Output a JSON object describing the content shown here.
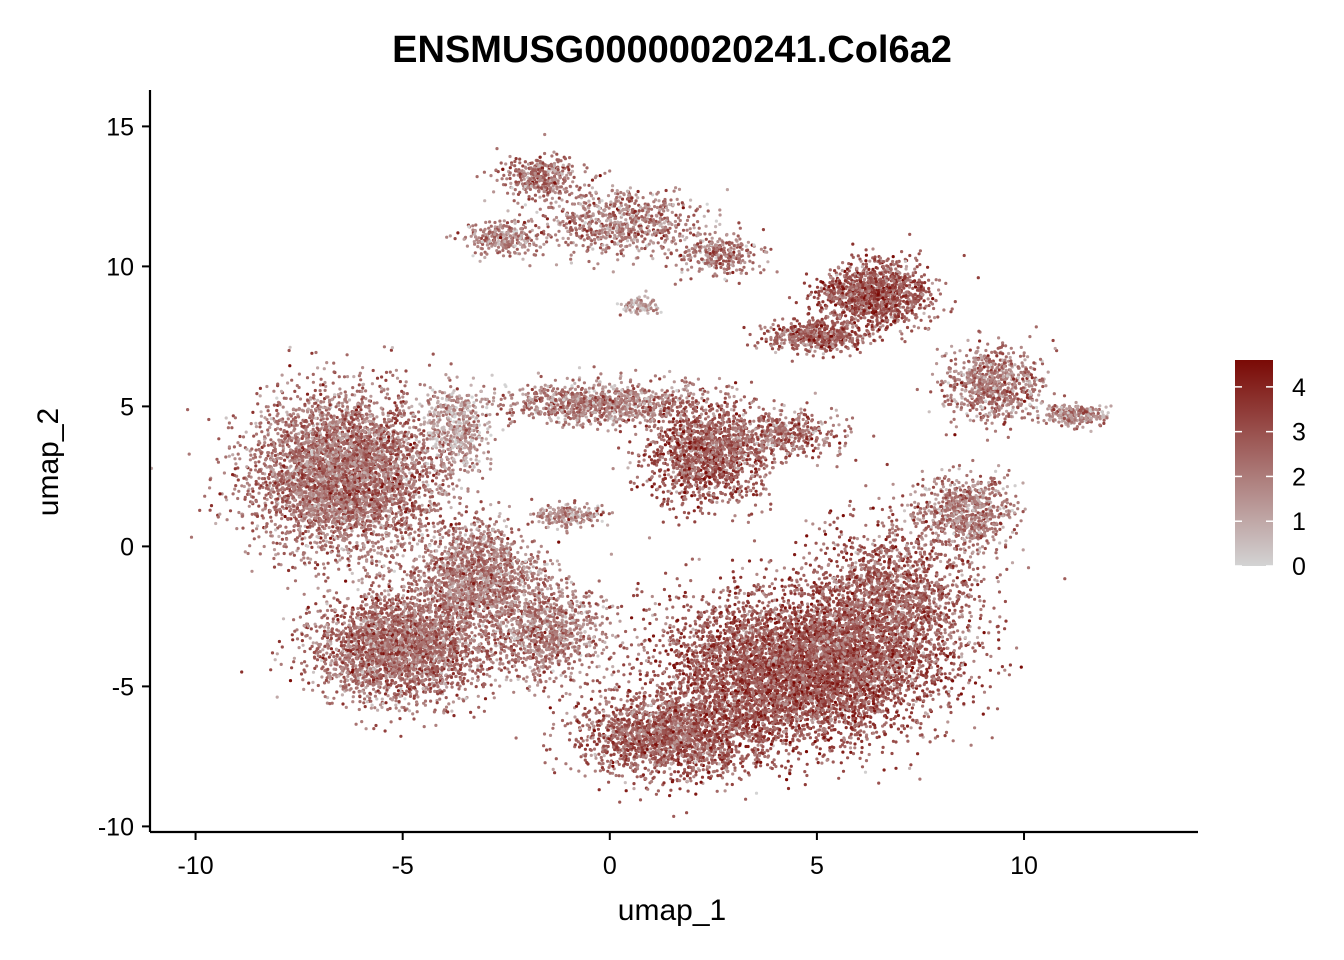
{
  "chart_data": {
    "type": "scatter",
    "title": "ENSMUSG00000020241.Col6a2",
    "xlabel": "umap_1",
    "ylabel": "umap_2",
    "xlim": [
      -11.1,
      14.2
    ],
    "ylim": [
      -10.2,
      16.3
    ],
    "x_ticks": [
      -10,
      -5,
      0,
      5,
      10
    ],
    "x_tick_labels": [
      "-10",
      "-5",
      "0",
      "5",
      "10"
    ],
    "y_ticks": [
      -10,
      -5,
      0,
      5,
      10,
      15
    ],
    "y_tick_labels": [
      "-10",
      "-5",
      "0",
      "5",
      "10",
      "15"
    ],
    "grid": false,
    "color_scale": {
      "low_color": "#d3d3d3",
      "high_color": "#7a0a05",
      "min": 0,
      "max": 4.6,
      "ticks": [
        0,
        1,
        2,
        3,
        4
      ],
      "tick_labels": [
        "0",
        "1",
        "2",
        "3",
        "4"
      ],
      "legend_placement": "right"
    },
    "clusters": [
      {
        "cx": -6.4,
        "cy": 2.6,
        "sx": 1.5,
        "sy": 1.9,
        "mean": 2.2,
        "weight": 18
      },
      {
        "cx": -5.0,
        "cy": -3.6,
        "sx": 1.4,
        "sy": 1.3,
        "mean": 2.4,
        "weight": 12
      },
      {
        "cx": -3.2,
        "cy": -1.0,
        "sx": 1.0,
        "sy": 1.3,
        "mean": 2.0,
        "weight": 6
      },
      {
        "cx": -1.5,
        "cy": -3.0,
        "sx": 1.0,
        "sy": 1.2,
        "mean": 2.0,
        "weight": 4
      },
      {
        "cx": 1.5,
        "cy": -6.8,
        "sx": 1.5,
        "sy": 1.0,
        "mean": 2.6,
        "weight": 8
      },
      {
        "cx": 4.5,
        "cy": -4.4,
        "sx": 2.2,
        "sy": 1.8,
        "mean": 2.9,
        "weight": 24
      },
      {
        "cx": 6.8,
        "cy": -2.0,
        "sx": 1.3,
        "sy": 1.8,
        "mean": 2.6,
        "weight": 8
      },
      {
        "cx": 2.3,
        "cy": 3.3,
        "sx": 0.9,
        "sy": 1.2,
        "mean": 2.8,
        "weight": 6
      },
      {
        "cx": -0.2,
        "cy": 5.1,
        "sx": 1.6,
        "sy": 0.5,
        "mean": 1.9,
        "weight": 4
      },
      {
        "cx": 6.4,
        "cy": 9.0,
        "sx": 0.9,
        "sy": 0.8,
        "mean": 2.9,
        "weight": 5
      },
      {
        "cx": 5.0,
        "cy": 7.5,
        "sx": 0.8,
        "sy": 0.4,
        "mean": 2.6,
        "weight": 2
      },
      {
        "cx": 9.3,
        "cy": 5.8,
        "sx": 0.8,
        "sy": 0.9,
        "mean": 2.0,
        "weight": 3
      },
      {
        "cx": 11.2,
        "cy": 4.7,
        "sx": 0.6,
        "sy": 0.25,
        "mean": 1.8,
        "weight": 1
      },
      {
        "cx": 8.6,
        "cy": 1.2,
        "sx": 0.8,
        "sy": 0.9,
        "mean": 2.0,
        "weight": 3
      },
      {
        "cx": 0.3,
        "cy": 11.6,
        "sx": 1.3,
        "sy": 0.8,
        "mean": 2.0,
        "weight": 3
      },
      {
        "cx": -1.8,
        "cy": 13.2,
        "sx": 0.6,
        "sy": 0.5,
        "mean": 2.2,
        "weight": 1.5
      },
      {
        "cx": -2.6,
        "cy": 11.0,
        "sx": 0.6,
        "sy": 0.4,
        "mean": 1.9,
        "weight": 1.2
      },
      {
        "cx": 2.6,
        "cy": 10.4,
        "sx": 0.7,
        "sy": 0.5,
        "mean": 2.1,
        "weight": 1.2
      },
      {
        "cx": -3.7,
        "cy": 4.2,
        "sx": 0.5,
        "sy": 1.0,
        "mean": 1.3,
        "weight": 2
      },
      {
        "cx": -1.0,
        "cy": 1.1,
        "sx": 0.5,
        "sy": 0.3,
        "mean": 1.6,
        "weight": 0.8
      },
      {
        "cx": 0.7,
        "cy": 8.6,
        "sx": 0.3,
        "sy": 0.2,
        "mean": 1.0,
        "weight": 0.4
      },
      {
        "cx": 4.0,
        "cy": 4.0,
        "sx": 1.0,
        "sy": 0.6,
        "mean": 2.3,
        "weight": 2
      }
    ]
  }
}
